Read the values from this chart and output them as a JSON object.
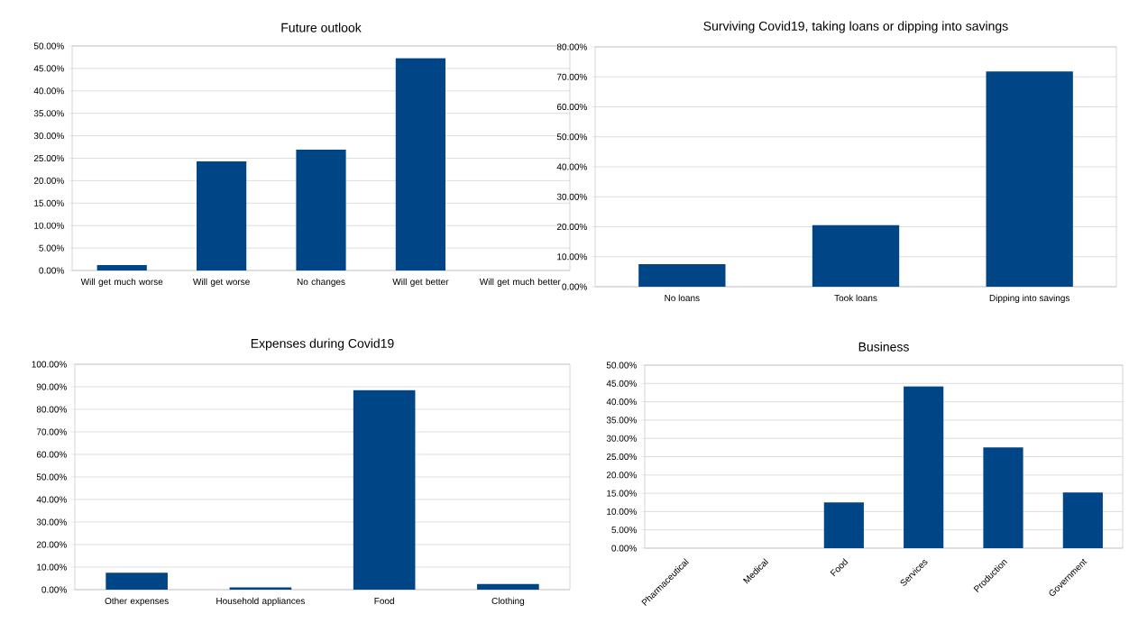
{
  "chart_data": [
    {
      "type": "bar",
      "title": "Future outlook",
      "categories": [
        "Will get much worse",
        "Will get worse",
        "No changes",
        "Will get better",
        "Will get much better"
      ],
      "values": [
        1.2,
        24.3,
        26.9,
        47.3,
        0
      ],
      "color": "#004586",
      "ylim": [
        0,
        50
      ],
      "yticks": [
        {
          "value": 0,
          "label": "0.00%"
        },
        {
          "value": 5,
          "label": "5.00%"
        },
        {
          "value": 10,
          "label": "10.00%"
        },
        {
          "value": 15,
          "label": "15.00%"
        },
        {
          "value": 20,
          "label": "20.00%"
        },
        {
          "value": 25,
          "label": "25.00%"
        },
        {
          "value": 30,
          "label": "30.00%"
        },
        {
          "value": 35,
          "label": "35.00%"
        },
        {
          "value": 40,
          "label": "40.00%"
        },
        {
          "value": 45,
          "label": "45.00%"
        },
        {
          "value": 50,
          "label": "50.00%"
        }
      ],
      "grid": "y"
    },
    {
      "type": "bar",
      "title": "Surviving Covid19, taking loans or dipping into savings",
      "categories": [
        "No loans",
        "Took loans",
        "Dipping into savings"
      ],
      "values": [
        7.5,
        20.5,
        71.8
      ],
      "color": "#004586",
      "ylim": [
        0,
        80
      ],
      "yticks": [
        {
          "value": 0,
          "label": "0.00%"
        },
        {
          "value": 10,
          "label": "10.00%"
        },
        {
          "value": 20,
          "label": "20.00%"
        },
        {
          "value": 30,
          "label": "30.00%"
        },
        {
          "value": 40,
          "label": "40.00%"
        },
        {
          "value": 50,
          "label": "50.00%"
        },
        {
          "value": 60,
          "label": "60.00%"
        },
        {
          "value": 70,
          "label": "70.00%"
        },
        {
          "value": 80,
          "label": "80.00%"
        }
      ],
      "grid": "y"
    },
    {
      "type": "bar",
      "title": "Expenses during Covid19",
      "categories": [
        "Other expenses",
        "Household appliances",
        "Food",
        "Clothing"
      ],
      "values": [
        7.5,
        1.0,
        88.5,
        2.5
      ],
      "color": "#004586",
      "ylim": [
        0,
        100
      ],
      "yticks": [
        {
          "value": 0,
          "label": "0.00%"
        },
        {
          "value": 10,
          "label": "10.00%"
        },
        {
          "value": 20,
          "label": "20.00%"
        },
        {
          "value": 30,
          "label": "30.00%"
        },
        {
          "value": 40,
          "label": "40.00%"
        },
        {
          "value": 50,
          "label": "50.00%"
        },
        {
          "value": 60,
          "label": "60.00%"
        },
        {
          "value": 70,
          "label": "70.00%"
        },
        {
          "value": 80,
          "label": "80.00%"
        },
        {
          "value": 90,
          "label": "90.00%"
        },
        {
          "value": 100,
          "label": "100.00%"
        }
      ],
      "grid": "y"
    },
    {
      "type": "bar",
      "title": "Business",
      "categories": [
        "Pharmaceutical",
        "Medical",
        "Food",
        "Services",
        "Production",
        "Government"
      ],
      "values": [
        0,
        0,
        12.5,
        44.2,
        27.5,
        15.2
      ],
      "color": "#004586",
      "ylim": [
        0,
        50
      ],
      "yticks": [
        {
          "value": 0,
          "label": "0.00%"
        },
        {
          "value": 5,
          "label": "5.00%"
        },
        {
          "value": 10,
          "label": "10.00%"
        },
        {
          "value": 15,
          "label": "15.00%"
        },
        {
          "value": 20,
          "label": "20.00%"
        },
        {
          "value": 25,
          "label": "25.00%"
        },
        {
          "value": 30,
          "label": "30.00%"
        },
        {
          "value": 35,
          "label": "35.00%"
        },
        {
          "value": 40,
          "label": "40.00%"
        },
        {
          "value": 45,
          "label": "45.00%"
        },
        {
          "value": 50,
          "label": "50.00%"
        }
      ],
      "grid": "y"
    }
  ]
}
